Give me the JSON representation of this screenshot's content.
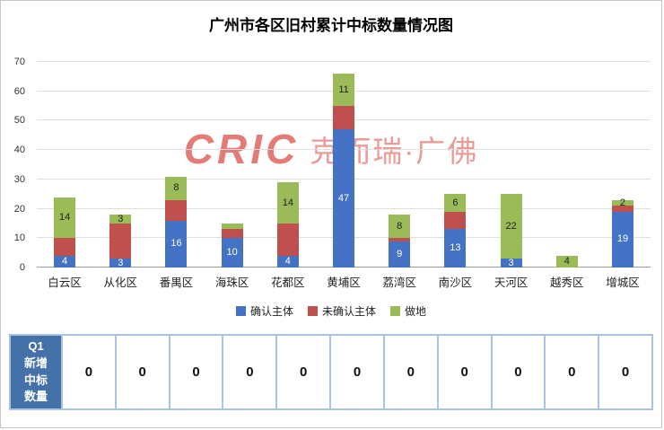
{
  "title": "广州市各区旧村累计中标数量情况图",
  "watermark": {
    "logo": "CRIC",
    "brand": "克而瑞·广佛"
  },
  "chart_data": {
    "type": "bar",
    "stacked": true,
    "title": "广州市各区旧村累计中标数量情况图",
    "categories": [
      "白云区",
      "从化区",
      "番禺区",
      "海珠区",
      "花都区",
      "黄埔区",
      "荔湾区",
      "南沙区",
      "天河区",
      "越秀区",
      "增城区"
    ],
    "series": [
      {
        "name": "确认主体",
        "color": "#4472C4",
        "values": [
          4,
          3,
          16,
          10,
          4,
          47,
          9,
          13,
          3,
          0,
          19
        ],
        "labels": [
          "4",
          "3",
          "16",
          "10",
          "4",
          "47",
          "9",
          "13",
          "3",
          "",
          "19"
        ]
      },
      {
        "name": "未确认主体",
        "color": "#C0504D",
        "values": [
          6,
          12,
          7,
          3,
          11,
          8,
          1,
          6,
          0,
          0,
          2
        ],
        "labels": [
          "",
          "",
          "",
          "",
          "",
          "",
          "",
          "",
          "",
          "",
          ""
        ]
      },
      {
        "name": "做地",
        "color": "#9BBB59",
        "values": [
          14,
          3,
          8,
          2,
          14,
          11,
          8,
          6,
          22,
          4,
          2
        ],
        "labels": [
          "14",
          "3",
          "8",
          "",
          "14",
          "11",
          "8",
          "6",
          "22",
          "4",
          "2"
        ]
      }
    ],
    "ylim": [
      0,
      70
    ],
    "ytick_interval": 10,
    "grid": true,
    "legend_position": "bottom",
    "xlabel": "",
    "ylabel": ""
  },
  "table": {
    "header_lines": [
      "Q1",
      "新增",
      "中标",
      "数量"
    ],
    "values": [
      "0",
      "0",
      "0",
      "0",
      "0",
      "0",
      "0",
      "0",
      "0",
      "0",
      "0"
    ]
  }
}
